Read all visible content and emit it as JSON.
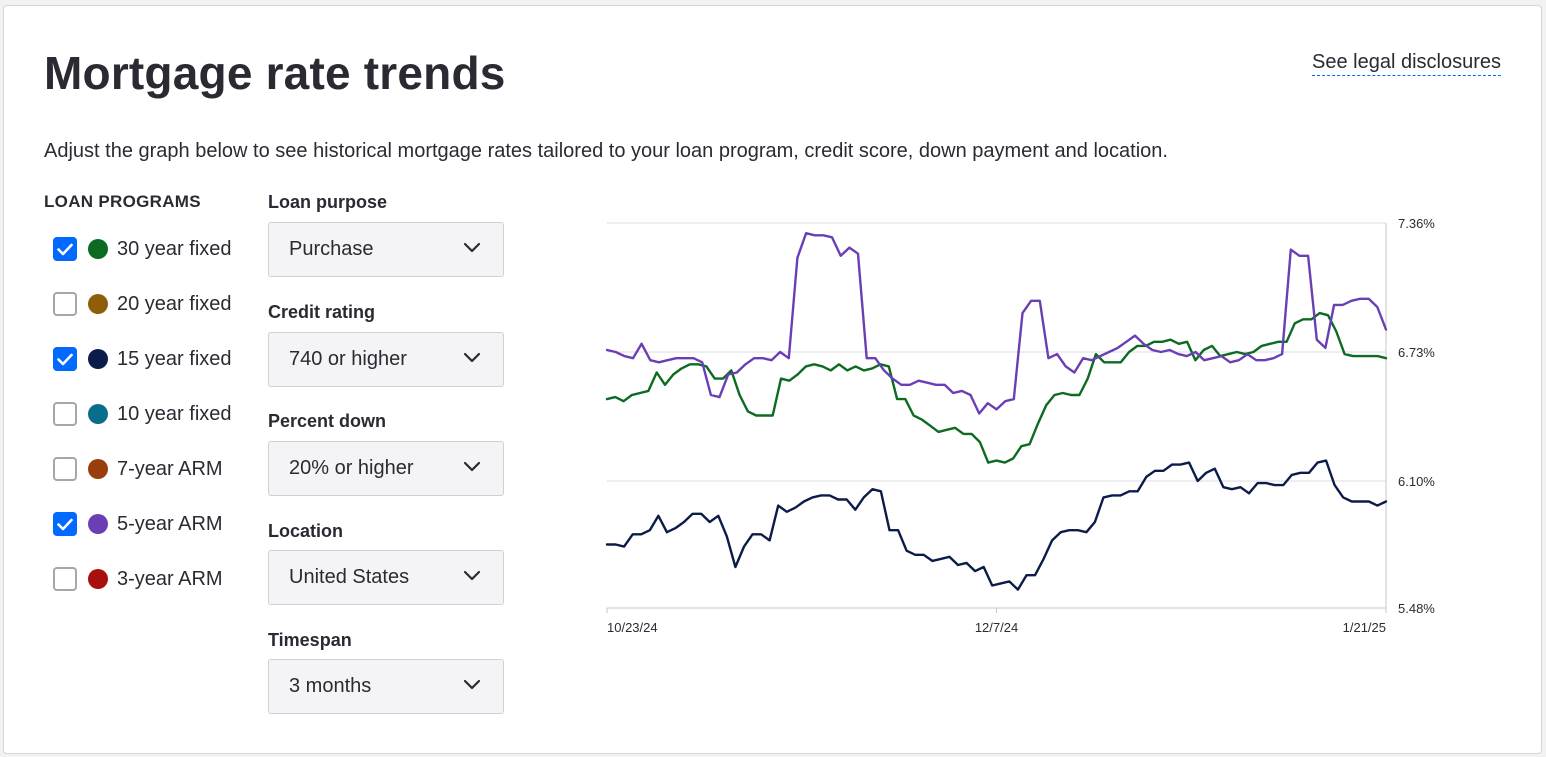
{
  "header": {
    "title": "Mortgage rate trends",
    "legal_link": "See legal disclosures",
    "subtitle": "Adjust the graph below to see historical mortgage rates tailored to your loan program, credit score, down payment and location."
  },
  "loan_programs": {
    "heading": "LOAN PROGRAMS",
    "items": [
      {
        "label": "30 year fixed",
        "checked": true,
        "color": "#0d6b21"
      },
      {
        "label": "20 year fixed",
        "checked": false,
        "color": "#8f5e0b"
      },
      {
        "label": "15 year fixed",
        "checked": true,
        "color": "#0c1c4a"
      },
      {
        "label": "10 year fixed",
        "checked": false,
        "color": "#0b6d8c"
      },
      {
        "label": "7-year ARM",
        "checked": false,
        "color": "#9a3d0c"
      },
      {
        "label": "5-year ARM",
        "checked": true,
        "color": "#6a3fb5"
      },
      {
        "label": "3-year ARM",
        "checked": false,
        "color": "#a80f0f"
      }
    ]
  },
  "filters": {
    "loan_purpose": {
      "label": "Loan purpose",
      "value": "Purchase"
    },
    "credit_rating": {
      "label": "Credit rating",
      "value": "740 or higher"
    },
    "percent_down": {
      "label": "Percent down",
      "value": "20% or higher"
    },
    "location": {
      "label": "Location",
      "value": "United States"
    },
    "timespan": {
      "label": "Timespan",
      "value": "3 months"
    }
  },
  "chart_data": {
    "type": "line",
    "title": "",
    "xlabel": "",
    "ylabel": "",
    "x_ticks": [
      "10/23/24",
      "12/7/24",
      "1/21/25"
    ],
    "y_ticks": [
      "7.36%",
      "6.73%",
      "6.10%",
      "5.48%"
    ],
    "ylim": [
      5.48,
      7.36
    ],
    "grid": "horizontal",
    "series": [
      {
        "name": "30 year fixed",
        "color": "#0d6b21",
        "values": [
          6.5,
          6.51,
          6.49,
          6.52,
          6.53,
          6.54,
          6.63,
          6.57,
          6.62,
          6.65,
          6.67,
          6.67,
          6.66,
          6.6,
          6.6,
          6.64,
          6.52,
          6.44,
          6.42,
          6.42,
          6.42,
          6.6,
          6.59,
          6.62,
          6.66,
          6.67,
          6.66,
          6.64,
          6.67,
          6.64,
          6.66,
          6.64,
          6.65,
          6.67,
          6.66,
          6.5,
          6.5,
          6.42,
          6.4,
          6.37,
          6.34,
          6.35,
          6.36,
          6.33,
          6.33,
          6.29,
          6.19,
          6.2,
          6.19,
          6.21,
          6.27,
          6.28,
          6.38,
          6.47,
          6.52,
          6.53,
          6.52,
          6.52,
          6.6,
          6.72,
          6.68,
          6.68,
          6.68,
          6.73,
          6.76,
          6.76,
          6.78,
          6.78,
          6.79,
          6.77,
          6.78,
          6.69,
          6.74,
          6.76,
          6.71,
          6.72,
          6.73,
          6.72,
          6.73,
          6.76,
          6.77,
          6.78,
          6.78,
          6.87,
          6.89,
          6.89,
          6.92,
          6.91,
          6.83,
          6.72,
          6.71,
          6.71,
          6.71,
          6.71,
          6.7
        ]
      },
      {
        "name": "15 year fixed",
        "color": "#0c1c4a",
        "values": [
          5.79,
          5.79,
          5.78,
          5.84,
          5.84,
          5.86,
          5.93,
          5.85,
          5.87,
          5.9,
          5.94,
          5.94,
          5.9,
          5.93,
          5.83,
          5.68,
          5.78,
          5.84,
          5.84,
          5.81,
          5.98,
          5.95,
          5.97,
          6.0,
          6.02,
          6.03,
          6.03,
          6.01,
          6.01,
          5.96,
          6.02,
          6.06,
          6.05,
          5.86,
          5.86,
          5.76,
          5.74,
          5.74,
          5.71,
          5.72,
          5.73,
          5.69,
          5.7,
          5.66,
          5.68,
          5.59,
          5.6,
          5.61,
          5.57,
          5.64,
          5.64,
          5.72,
          5.81,
          5.85,
          5.86,
          5.86,
          5.85,
          5.9,
          6.02,
          6.03,
          6.03,
          6.05,
          6.05,
          6.12,
          6.15,
          6.15,
          6.18,
          6.18,
          6.19,
          6.1,
          6.14,
          6.16,
          6.07,
          6.06,
          6.07,
          6.04,
          6.09,
          6.09,
          6.08,
          6.08,
          6.13,
          6.14,
          6.14,
          6.19,
          6.2,
          6.08,
          6.02,
          6.0,
          6.0,
          6.0,
          5.98,
          6.0
        ]
      },
      {
        "name": "5-year ARM",
        "color": "#6a3fb5",
        "values": [
          6.74,
          6.73,
          6.71,
          6.7,
          6.77,
          6.69,
          6.68,
          6.69,
          6.7,
          6.7,
          6.7,
          6.68,
          6.52,
          6.51,
          6.62,
          6.63,
          6.67,
          6.7,
          6.7,
          6.69,
          6.73,
          6.7,
          7.19,
          7.31,
          7.3,
          7.3,
          7.29,
          7.2,
          7.24,
          7.21,
          6.7,
          6.7,
          6.64,
          6.6,
          6.57,
          6.57,
          6.59,
          6.58,
          6.57,
          6.57,
          6.53,
          6.54,
          6.52,
          6.43,
          6.48,
          6.45,
          6.49,
          6.5,
          6.92,
          6.98,
          6.98,
          6.7,
          6.72,
          6.66,
          6.63,
          6.7,
          6.69,
          6.71,
          6.73,
          6.75,
          6.78,
          6.81,
          6.77,
          6.74,
          6.73,
          6.74,
          6.72,
          6.71,
          6.73,
          6.69,
          6.7,
          6.71,
          6.68,
          6.69,
          6.72,
          6.69,
          6.69,
          6.7,
          6.72,
          7.23,
          7.2,
          7.2,
          6.79,
          6.75,
          6.96,
          6.96,
          6.98,
          6.99,
          6.99,
          6.95,
          6.84
        ]
      }
    ]
  }
}
